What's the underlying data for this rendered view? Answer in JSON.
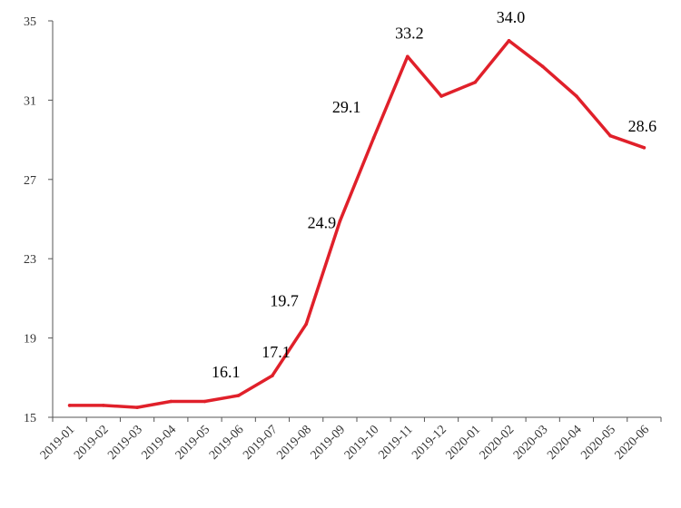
{
  "chart_data": {
    "type": "line",
    "title": "",
    "xlabel": "",
    "ylabel": "",
    "ylim": [
      15,
      35
    ],
    "yticks": [
      15,
      19,
      23,
      27,
      31,
      35
    ],
    "grid": false,
    "categories": [
      "2019-01",
      "2019-02",
      "2019-03",
      "2019-04",
      "2019-05",
      "2019-06",
      "2019-07",
      "2019-08",
      "2019-09",
      "2019-10",
      "2019-11",
      "2019-12",
      "2020-01",
      "2020-02",
      "2020-03",
      "2020-04",
      "2020-05",
      "2020-06"
    ],
    "series": [
      {
        "color": "#e0202a",
        "values": [
          15.6,
          15.6,
          15.5,
          15.8,
          15.8,
          16.1,
          17.1,
          19.7,
          24.9,
          29.1,
          33.2,
          31.2,
          31.9,
          34.0,
          32.7,
          31.2,
          29.2,
          28.6
        ]
      }
    ],
    "data_labels": [
      {
        "index": 5,
        "text": "16.1"
      },
      {
        "index": 6,
        "text": "17.1"
      },
      {
        "index": 7,
        "text": "19.7"
      },
      {
        "index": 8,
        "text": "24.9"
      },
      {
        "index": 9,
        "text": "29.1"
      },
      {
        "index": 10,
        "text": "33.2"
      },
      {
        "index": 13,
        "text": "34.0"
      },
      {
        "index": 17,
        "text": "28.6"
      }
    ]
  }
}
